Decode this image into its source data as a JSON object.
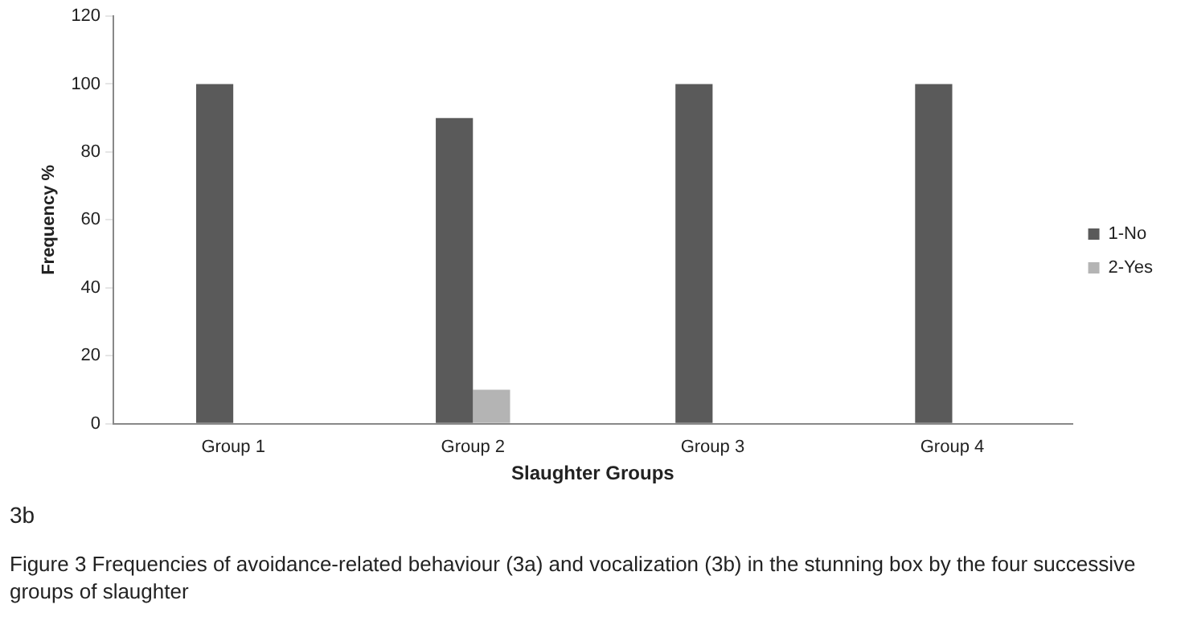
{
  "chart_data": {
    "type": "bar",
    "xlabel": "Slaughter Groups",
    "ylabel": "Frequency %",
    "categories": [
      "Group 1",
      "Group 2",
      "Group 3",
      "Group 4"
    ],
    "series": [
      {
        "name": "1-No",
        "color": "#5a5a5a",
        "values": [
          100,
          90,
          100,
          100
        ]
      },
      {
        "name": "2-Yes",
        "color": "#b4b4b4",
        "values": [
          0,
          10,
          0,
          0
        ]
      }
    ],
    "ylim": [
      0,
      120
    ],
    "yticks": [
      0,
      20,
      40,
      60,
      80,
      100,
      120
    ],
    "grid": false,
    "legend": "right",
    "annotations": [
      "3b",
      "Figure 3 Frequencies of avoidance-related behaviour (3a) and vocalization (3b) in the stunning box by the four successive groups of slaughter"
    ]
  }
}
